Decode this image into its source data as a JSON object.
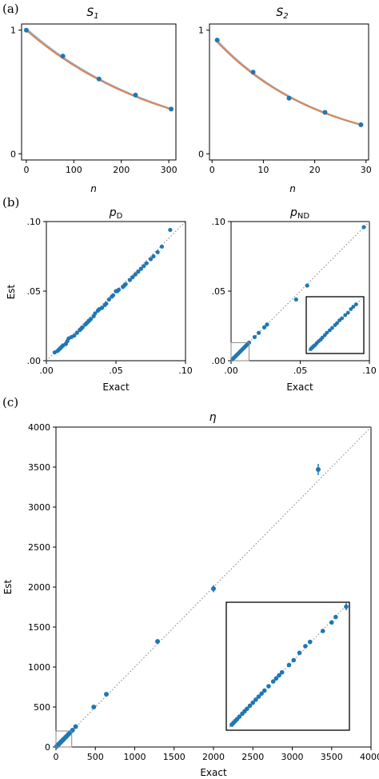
{
  "colors": {
    "points": "#1f77b4",
    "fit": "#dd8452",
    "fit_light": "#8fb3d6"
  },
  "panel_labels": {
    "a": "(a)",
    "b": "(b)",
    "c": "(c)"
  },
  "titles": {
    "s1_main": "S",
    "s1_sub": "1",
    "s2_main": "S",
    "s2_sub": "2",
    "pd_main": "p",
    "pd_sub": "D",
    "pnd_main": "p",
    "pnd_sub": "ND",
    "eta": "η"
  },
  "axis_labels": {
    "n": "n",
    "exact": "Exact",
    "est": "Est"
  },
  "chart_data": [
    {
      "id": "S1",
      "type": "scatter",
      "title": "S1",
      "xlabel": "n",
      "ylabel": "",
      "xlim": [
        -10,
        315
      ],
      "ylim": [
        -0.05,
        1.05
      ],
      "xticks": [
        0,
        100,
        200,
        300
      ],
      "xtick_labels": [
        "0",
        "100",
        "200",
        "300"
      ],
      "yticks": [
        0,
        1
      ],
      "ytick_labels": [
        "0",
        "1"
      ],
      "points": [
        [
          0,
          1.0
        ],
        [
          77,
          0.79
        ],
        [
          153,
          0.605
        ],
        [
          230,
          0.475
        ],
        [
          305,
          0.362
        ]
      ],
      "fit": {
        "a": 1.0,
        "k": 0.00335,
        "x0": 0,
        "x1": 305
      }
    },
    {
      "id": "S2",
      "type": "scatter",
      "title": "S2",
      "xlabel": "n",
      "ylabel": "",
      "xlim": [
        -0.5,
        30.5
      ],
      "ylim": [
        -0.05,
        1.05
      ],
      "xticks": [
        0,
        10,
        20,
        30
      ],
      "xtick_labels": [
        "0",
        "10",
        "20",
        "30"
      ],
      "yticks": [
        0,
        1
      ],
      "ytick_labels": [
        "0",
        "1"
      ],
      "points": [
        [
          1,
          0.92
        ],
        [
          8,
          0.66
        ],
        [
          15,
          0.45
        ],
        [
          22,
          0.335
        ],
        [
          29,
          0.235
        ]
      ],
      "fit": {
        "a": 0.95,
        "k": 0.0483,
        "x0": 1,
        "x1": 29
      }
    },
    {
      "id": "pD",
      "type": "scatter",
      "title": "pD",
      "xlabel": "Exact",
      "ylabel": "Est",
      "xlim": [
        0,
        0.1
      ],
      "ylim": [
        0,
        0.1
      ],
      "xticks": [
        0,
        0.05,
        0.1
      ],
      "xtick_labels": [
        ".00",
        ".05",
        ".10"
      ],
      "yticks": [
        0,
        0.05,
        0.1
      ],
      "ytick_labels": [
        ".00",
        ".05",
        ".10"
      ],
      "points": [
        [
          0.006,
          0.006
        ],
        [
          0.008,
          0.007
        ],
        [
          0.009,
          0.008
        ],
        [
          0.01,
          0.009
        ],
        [
          0.011,
          0.01
        ],
        [
          0.012,
          0.011
        ],
        [
          0.014,
          0.012
        ],
        [
          0.015,
          0.014
        ],
        [
          0.016,
          0.016
        ],
        [
          0.018,
          0.017
        ],
        [
          0.02,
          0.018
        ],
        [
          0.022,
          0.02
        ],
        [
          0.024,
          0.022
        ],
        [
          0.025,
          0.023
        ],
        [
          0.026,
          0.024
        ],
        [
          0.028,
          0.026
        ],
        [
          0.029,
          0.027
        ],
        [
          0.03,
          0.028
        ],
        [
          0.031,
          0.029
        ],
        [
          0.032,
          0.03
        ],
        [
          0.034,
          0.032
        ],
        [
          0.035,
          0.034
        ],
        [
          0.037,
          0.036
        ],
        [
          0.038,
          0.037
        ],
        [
          0.04,
          0.038
        ],
        [
          0.042,
          0.04
        ],
        [
          0.043,
          0.041
        ],
        [
          0.045,
          0.044
        ],
        [
          0.047,
          0.046
        ],
        [
          0.048,
          0.047
        ],
        [
          0.05,
          0.05
        ],
        [
          0.051,
          0.05
        ],
        [
          0.052,
          0.051
        ],
        [
          0.055,
          0.053
        ],
        [
          0.056,
          0.054
        ],
        [
          0.057,
          0.055
        ],
        [
          0.06,
          0.058
        ],
        [
          0.062,
          0.06
        ],
        [
          0.064,
          0.062
        ],
        [
          0.066,
          0.064
        ],
        [
          0.068,
          0.066
        ],
        [
          0.07,
          0.068
        ],
        [
          0.072,
          0.07
        ],
        [
          0.075,
          0.073
        ],
        [
          0.077,
          0.075
        ],
        [
          0.08,
          0.078
        ],
        [
          0.083,
          0.082
        ],
        [
          0.089,
          0.094
        ]
      ],
      "diag": [
        0,
        0.1
      ]
    },
    {
      "id": "pND",
      "type": "scatter",
      "title": "pND",
      "xlabel": "",
      "ylabel": "",
      "xlim": [
        0,
        0.1
      ],
      "ylim": [
        0,
        0.1
      ],
      "xticks": [
        0,
        0.05,
        0.1
      ],
      "xtick_labels": [
        ".00",
        ".05",
        ".10"
      ],
      "yticks": [
        0,
        0.05,
        0.1
      ],
      "ytick_labels": [
        ".00",
        ".05",
        ".10"
      ],
      "points": [
        [
          0.001,
          0.001
        ],
        [
          0.002,
          0.002
        ],
        [
          0.003,
          0.003
        ],
        [
          0.004,
          0.004
        ],
        [
          0.005,
          0.005
        ],
        [
          0.006,
          0.006
        ],
        [
          0.007,
          0.007
        ],
        [
          0.008,
          0.008
        ],
        [
          0.009,
          0.009
        ],
        [
          0.01,
          0.01
        ],
        [
          0.011,
          0.011
        ],
        [
          0.012,
          0.012
        ],
        [
          0.013,
          0.013
        ],
        [
          0.017,
          0.017
        ],
        [
          0.02,
          0.02
        ],
        [
          0.024,
          0.024
        ],
        [
          0.026,
          0.026
        ],
        [
          0.047,
          0.044
        ],
        [
          0.055,
          0.054
        ],
        [
          0.096,
          0.096
        ]
      ],
      "zoom_box": [
        0,
        0.013
      ],
      "inset": {
        "range": [
          0,
          0.013
        ],
        "points": [
          [
            0.0005,
            0.0005
          ],
          [
            0.0008,
            0.0008
          ],
          [
            0.001,
            0.001
          ],
          [
            0.0013,
            0.0013
          ],
          [
            0.0016,
            0.0015
          ],
          [
            0.002,
            0.002
          ],
          [
            0.0025,
            0.0025
          ],
          [
            0.003,
            0.0029
          ],
          [
            0.0034,
            0.0034
          ],
          [
            0.004,
            0.004
          ],
          [
            0.0045,
            0.0046
          ],
          [
            0.0052,
            0.0052
          ],
          [
            0.0058,
            0.0058
          ],
          [
            0.0065,
            0.0065
          ],
          [
            0.007,
            0.007
          ],
          [
            0.0076,
            0.0077
          ],
          [
            0.0082,
            0.0082
          ],
          [
            0.009,
            0.009
          ],
          [
            0.0097,
            0.0096
          ],
          [
            0.0104,
            0.0105
          ],
          [
            0.011,
            0.0111
          ],
          [
            0.0117,
            0.0117
          ]
        ]
      },
      "diag": [
        0,
        0.1
      ]
    },
    {
      "id": "eta",
      "type": "scatter",
      "title": "η",
      "xlabel": "Exact",
      "ylabel": "Est",
      "xlim": [
        0,
        4000
      ],
      "ylim": [
        0,
        4000
      ],
      "xticks": [
        0,
        500,
        1000,
        1500,
        2000,
        2500,
        3000,
        3500,
        4000
      ],
      "xtick_labels": [
        "0",
        "500",
        "1000",
        "1500",
        "2000",
        "2500",
        "3000",
        "3500",
        "4000"
      ],
      "yticks": [
        0,
        500,
        1000,
        1500,
        2000,
        2500,
        3000,
        3500,
        4000
      ],
      "ytick_labels": [
        "0",
        "500",
        "1000",
        "1500",
        "2000",
        "2500",
        "3000",
        "3500",
        "4000"
      ],
      "points": [
        [
          10,
          10
        ],
        [
          20,
          20
        ],
        [
          30,
          30
        ],
        [
          40,
          40
        ],
        [
          55,
          55
        ],
        [
          70,
          70
        ],
        [
          85,
          85
        ],
        [
          100,
          100
        ],
        [
          120,
          120
        ],
        [
          140,
          140
        ],
        [
          160,
          160
        ],
        [
          180,
          180
        ],
        [
          210,
          210
        ],
        [
          250,
          255
        ],
        [
          480,
          500
        ],
        [
          640,
          660
        ],
        [
          1290,
          1320
        ],
        [
          2000,
          1980
        ],
        [
          3330,
          3470
        ]
      ],
      "errors": [
        0,
        0,
        0,
        0,
        0,
        0,
        0,
        0,
        0,
        0,
        0,
        0,
        0,
        0,
        15,
        0,
        25,
        45,
        70
      ],
      "zoom_box": [
        0,
        200
      ],
      "inset": {
        "range": [
          0,
          200
        ],
        "points": [
          [
            4,
            4
          ],
          [
            7,
            7
          ],
          [
            10,
            10
          ],
          [
            13,
            13
          ],
          [
            17,
            17
          ],
          [
            22,
            22
          ],
          [
            26,
            26
          ],
          [
            30,
            30
          ],
          [
            35,
            35
          ],
          [
            40,
            40
          ],
          [
            45,
            45
          ],
          [
            50,
            50
          ],
          [
            55,
            55
          ],
          [
            60,
            60
          ],
          [
            67,
            67
          ],
          [
            75,
            75
          ],
          [
            80,
            80
          ],
          [
            85,
            85
          ],
          [
            90,
            90
          ],
          [
            102,
            102
          ],
          [
            110,
            110
          ],
          [
            120,
            122
          ],
          [
            130,
            133
          ],
          [
            138,
            140
          ],
          [
            160,
            158
          ],
          [
            175,
            172
          ],
          [
            182,
            181
          ],
          [
            200,
            198
          ]
        ],
        "errors": [
          0,
          0,
          0,
          0,
          0,
          0,
          0,
          0,
          0,
          0,
          0,
          0,
          0,
          0,
          0,
          0,
          0,
          0,
          0,
          0,
          0,
          0,
          0,
          0,
          0,
          0,
          0,
          6
        ]
      },
      "diag": [
        0,
        4000
      ]
    }
  ]
}
